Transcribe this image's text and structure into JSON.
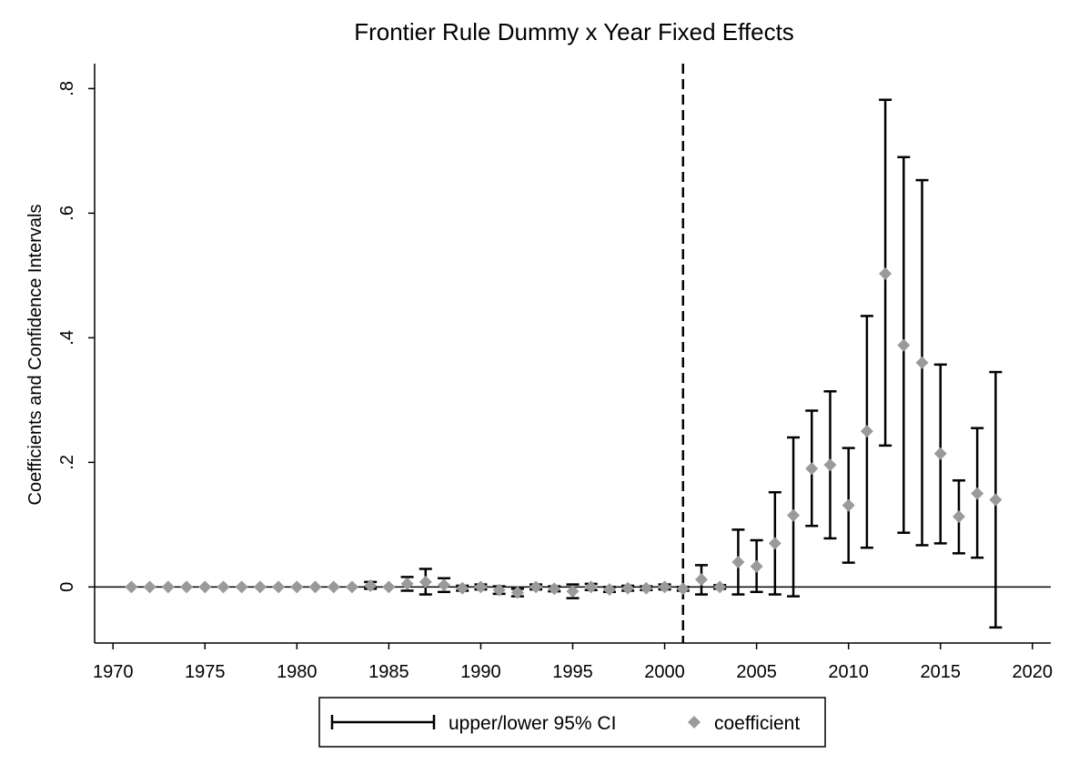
{
  "chart_data": {
    "type": "scatter",
    "title": "Frontier Rule Dummy x Year Fixed Effects",
    "xlabel": "",
    "ylabel": "Coefficients and Confidence Intervals",
    "xlim": [
      1969,
      2021
    ],
    "ylim": [
      -0.09,
      0.84
    ],
    "x_ticks": [
      1970,
      1975,
      1980,
      1985,
      1990,
      1995,
      2000,
      2005,
      2010,
      2015,
      2020
    ],
    "x_tick_labels": [
      "1970",
      "1975",
      "1980",
      "1985",
      "1990",
      "1995",
      "2000",
      "2005",
      "2010",
      "2015",
      "2020"
    ],
    "y_ticks": [
      0,
      0.2,
      0.4,
      0.6,
      0.8
    ],
    "y_tick_labels": [
      "0",
      ".2",
      ".4",
      ".6",
      ".8"
    ],
    "reference_lines": {
      "horizontal_y": 0,
      "vertical_dashed_x": 2001
    },
    "legend": {
      "placement": "bottom",
      "entries": [
        {
          "label": "upper/lower 95% CI",
          "symbol": "capped-range"
        },
        {
          "label": "coefficient",
          "symbol": "diamond"
        }
      ]
    },
    "colors": {
      "ci": "#000000",
      "coefficient": "#9a9a9a"
    },
    "x": [
      1971,
      1972,
      1973,
      1974,
      1975,
      1976,
      1977,
      1978,
      1979,
      1980,
      1981,
      1982,
      1983,
      1984,
      1985,
      1986,
      1987,
      1988,
      1989,
      1990,
      1991,
      1992,
      1993,
      1994,
      1995,
      1996,
      1997,
      1998,
      1999,
      2000,
      2001,
      2002,
      2003,
      2004,
      2005,
      2006,
      2007,
      2008,
      2009,
      2010,
      2011,
      2012,
      2013,
      2014,
      2015,
      2016,
      2017,
      2018
    ],
    "coefficient": [
      0,
      0,
      0,
      0,
      0,
      0,
      0,
      0,
      0,
      0,
      0,
      0,
      0,
      0.002,
      0,
      0.005,
      0.008,
      0.003,
      -0.002,
      0,
      -0.005,
      -0.009,
      0,
      -0.003,
      -0.007,
      0,
      -0.004,
      -0.002,
      -0.002,
      0,
      -0.003,
      0.012,
      0,
      0.04,
      0.033,
      0.07,
      0.115,
      0.19,
      0.196,
      0.131,
      0.25,
      0.503,
      0.388,
      0.36,
      0.214,
      0.113,
      0.15,
      0.14
    ],
    "ci_lower": [
      0,
      0,
      0,
      0,
      0,
      0,
      0,
      0,
      0,
      0,
      0,
      0,
      0,
      -0.003,
      0,
      -0.006,
      -0.012,
      -0.008,
      -0.006,
      -0.004,
      -0.011,
      -0.015,
      -0.004,
      -0.007,
      -0.018,
      -0.005,
      -0.008,
      -0.006,
      -0.005,
      -0.004,
      -0.006,
      -0.012,
      -0.003,
      -0.012,
      -0.008,
      -0.012,
      -0.015,
      0.098,
      0.078,
      0.039,
      0.063,
      0.227,
      0.087,
      0.067,
      0.07,
      0.054,
      0.047,
      -0.065
    ],
    "ci_upper": [
      0,
      0,
      0,
      0,
      0,
      0,
      0,
      0,
      0,
      0,
      0,
      0,
      0,
      0.008,
      0,
      0.016,
      0.029,
      0.014,
      0.002,
      0.004,
      0.001,
      -0.003,
      0.004,
      0.001,
      0.004,
      0.005,
      0,
      0.002,
      0.001,
      0.004,
      0,
      0.035,
      0.003,
      0.092,
      0.075,
      0.152,
      0.24,
      0.283,
      0.314,
      0.223,
      0.435,
      0.782,
      0.69,
      0.653,
      0.357,
      0.171,
      0.255,
      0.345
    ]
  }
}
